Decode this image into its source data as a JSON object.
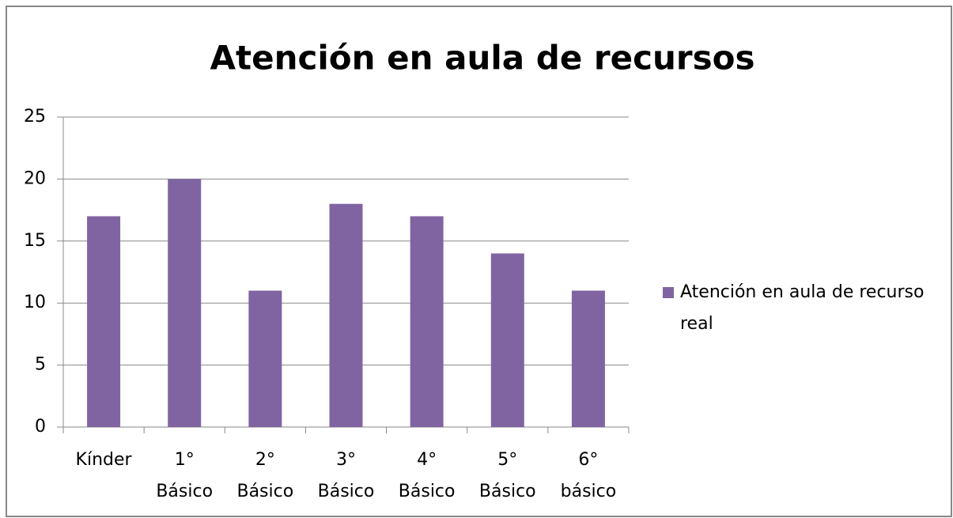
{
  "chart_data": {
    "type": "bar",
    "title": "Atención en aula de recursos",
    "categories": [
      "Kínder",
      "1° Básico",
      "2° Básico",
      "3° Básico",
      "4° Básico",
      "5° Básico",
      "6° básico"
    ],
    "series": [
      {
        "name": "Atención en aula de recurso real",
        "color": "#8064a2",
        "values": [
          17,
          20,
          11,
          18,
          17,
          14,
          11
        ]
      }
    ],
    "ylim": [
      0,
      25
    ],
    "yticks": [
      0,
      5,
      10,
      15,
      20,
      25
    ],
    "grid": true,
    "legend": "right"
  }
}
